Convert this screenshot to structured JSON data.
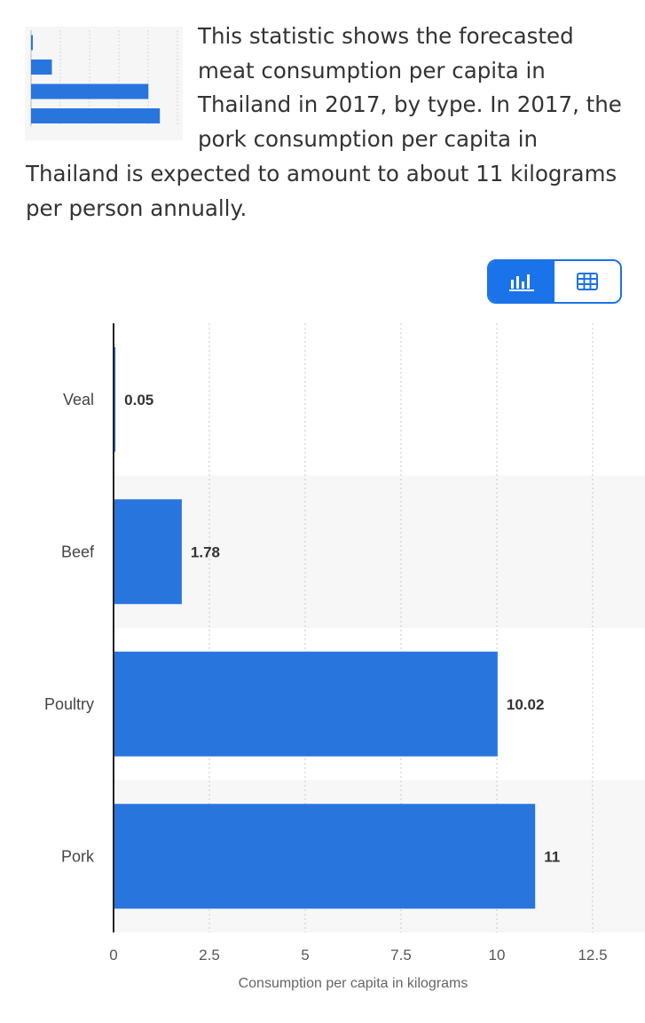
{
  "description": "This statistic shows the forecasted meat consumption per capita in Thailand in 2017, by type. In 2017, the pork consumption per capita in Thailand is expected to amount to about 11 kilograms per person annually.",
  "view_toggle": {
    "options": [
      {
        "name": "chart-view",
        "icon": "bar-chart-icon",
        "active": true
      },
      {
        "name": "table-view",
        "icon": "table-icon",
        "active": false
      }
    ]
  },
  "colors": {
    "bar": "#2876dd",
    "accent": "#1a73e8",
    "band": "#f7f7f7",
    "grid": "#c8c8c8"
  },
  "chart_data": {
    "type": "bar",
    "orientation": "horizontal",
    "categories": [
      "Veal",
      "Beef",
      "Poultry",
      "Pork"
    ],
    "values": [
      0.05,
      1.78,
      10.02,
      11
    ],
    "value_labels": [
      "0.05",
      "1.78",
      "10.02",
      "11"
    ],
    "xlabel": "Consumption per capita in kilograms",
    "xlim": [
      0,
      12.5
    ],
    "x_ticks": [
      0,
      2.5,
      5,
      7.5,
      10,
      12.5
    ],
    "x_tick_labels": [
      "0",
      "2.5",
      "5",
      "7.5",
      "10",
      "12.5"
    ],
    "grid": "vertical dotted",
    "legend": "none"
  }
}
